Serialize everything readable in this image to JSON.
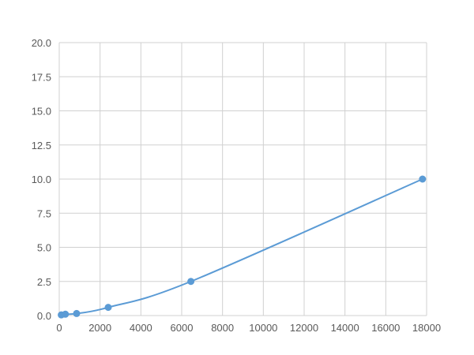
{
  "chart_data": {
    "type": "scatter",
    "title": "",
    "xlabel": "",
    "ylabel": "",
    "xlim": [
      0,
      18000
    ],
    "ylim": [
      0,
      20
    ],
    "xticks": [
      0,
      2000,
      4000,
      6000,
      8000,
      10000,
      12000,
      14000,
      16000,
      18000
    ],
    "yticks": [
      "0.0",
      "2.5",
      "5.0",
      "7.5",
      "10.0",
      "12.5",
      "15.0",
      "17.5",
      "20.0"
    ],
    "grid": true,
    "color": "#5b9bd5",
    "smooth_line": true,
    "series": [
      {
        "x": [
          100,
          300,
          850,
          2400,
          6450,
          17800
        ],
        "y": [
          0.05,
          0.1,
          0.15,
          0.6,
          2.5,
          10.0
        ]
      }
    ]
  }
}
